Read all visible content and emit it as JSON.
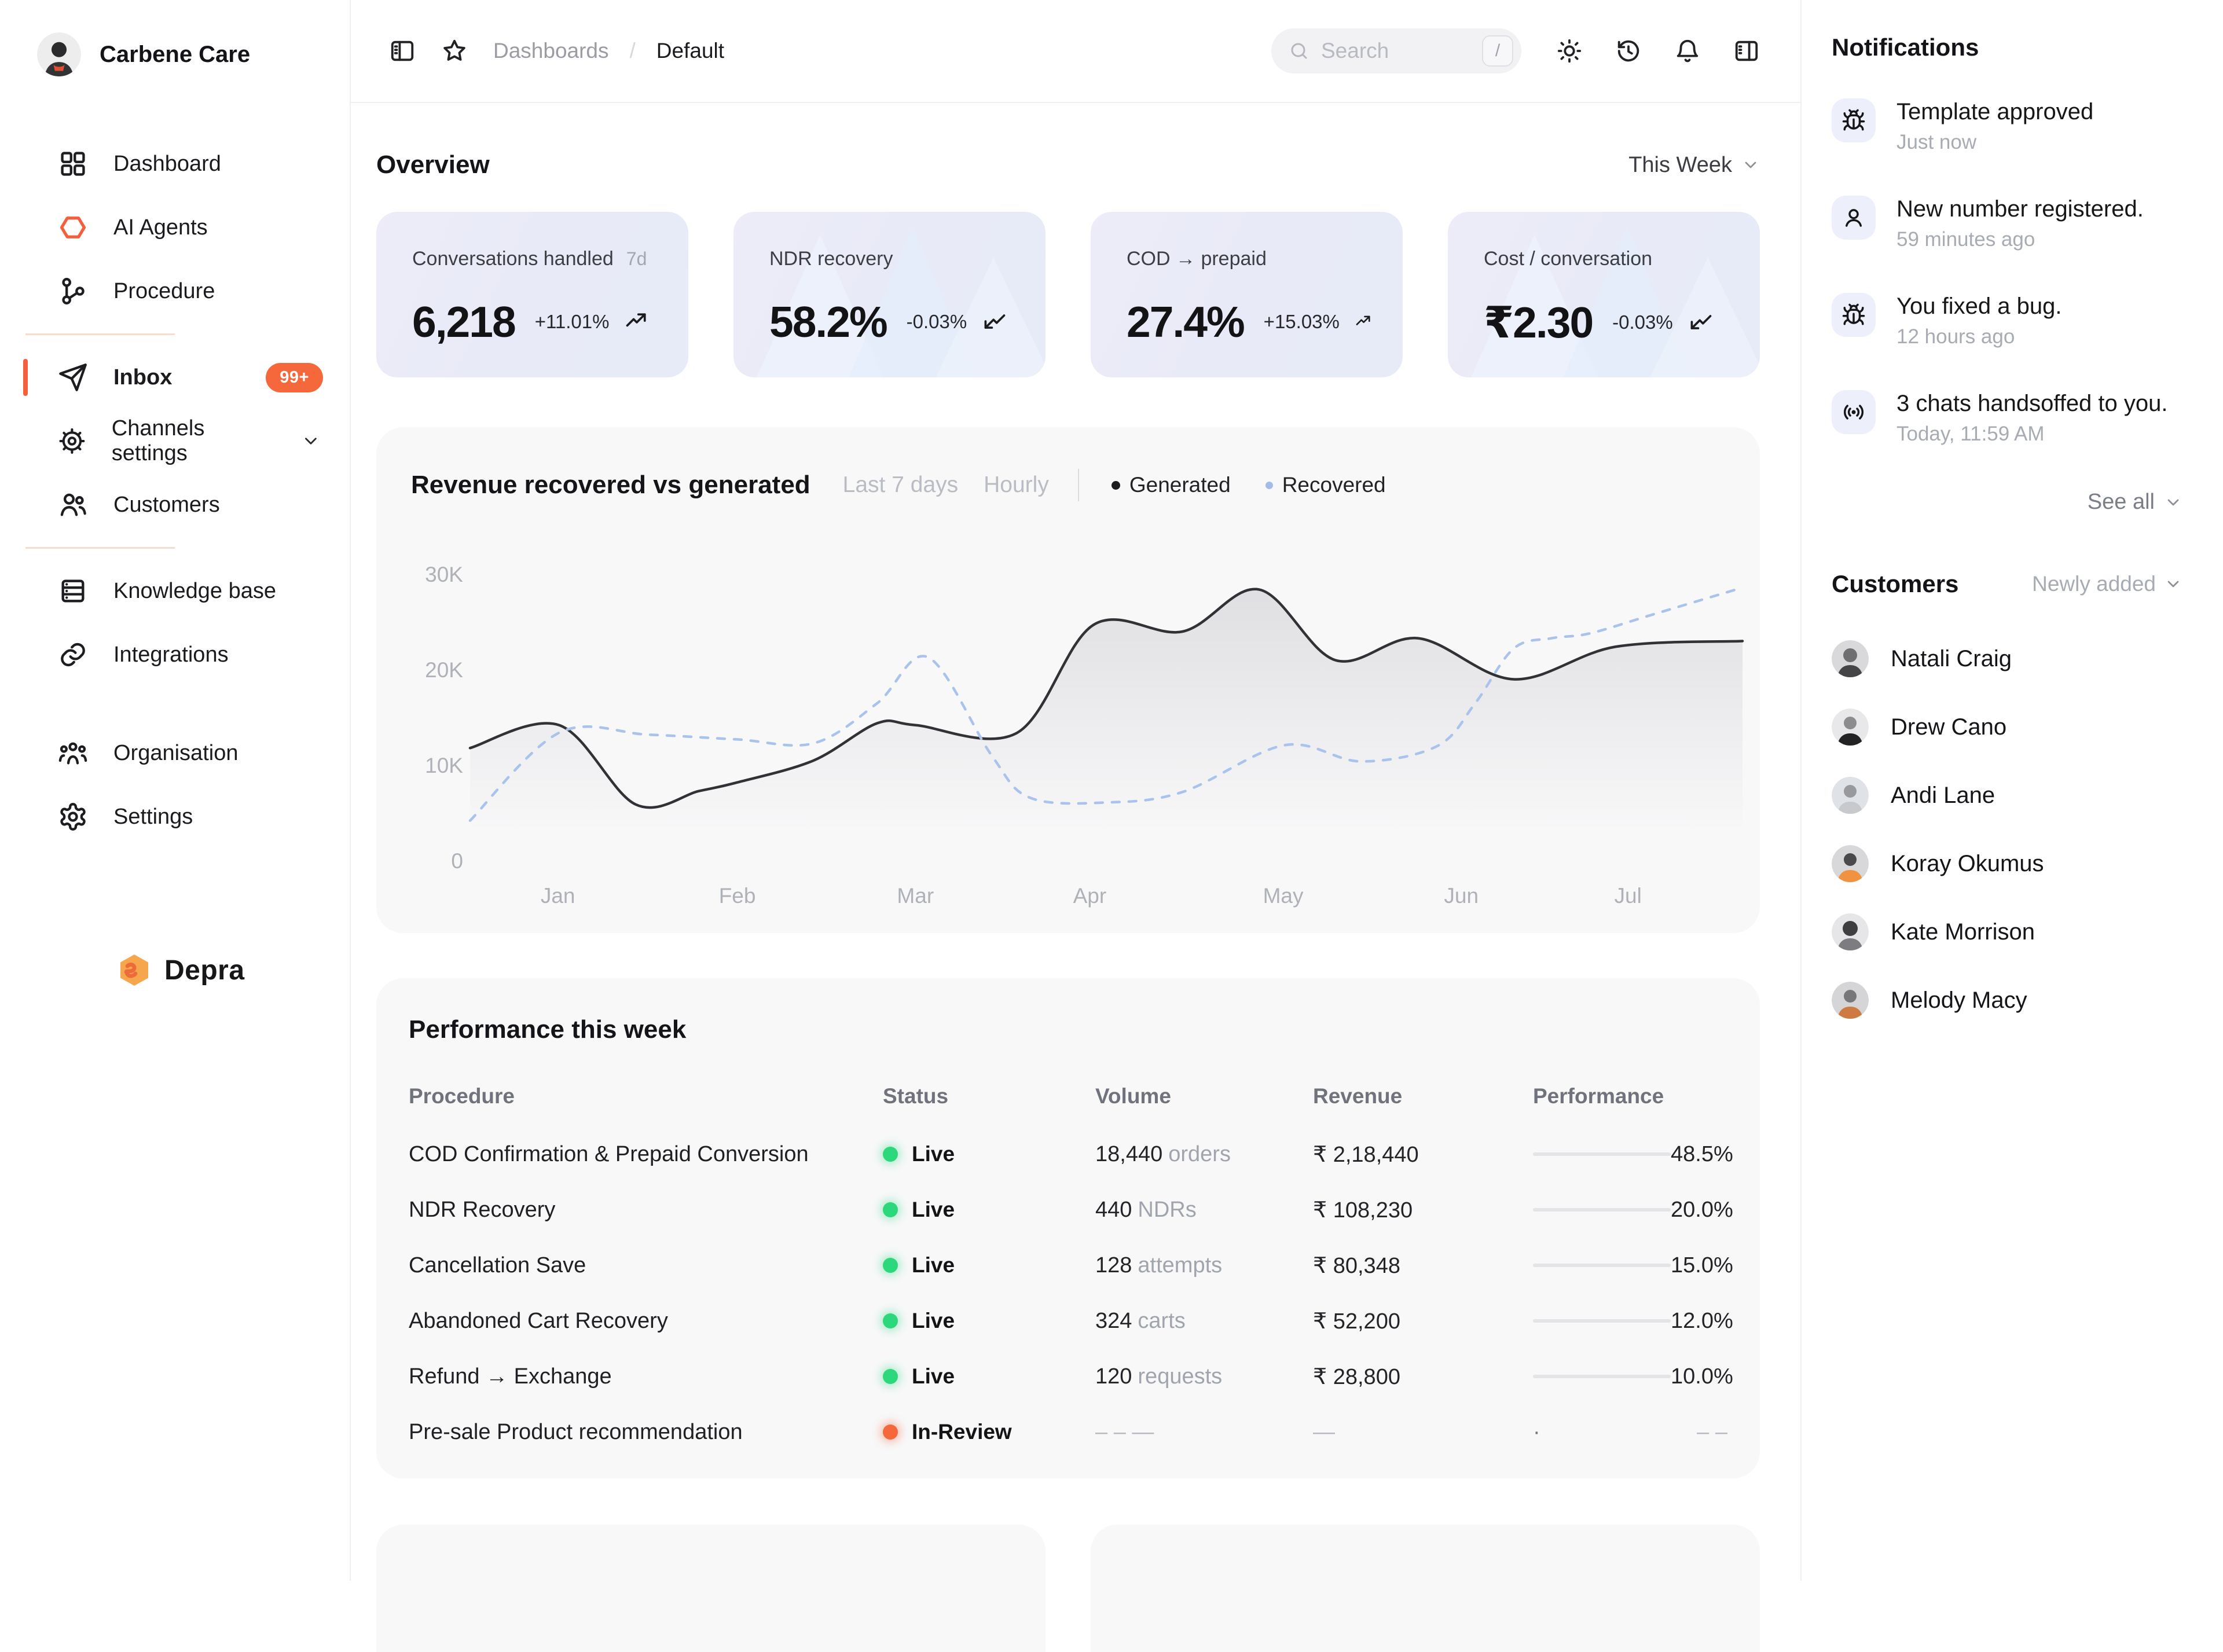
{
  "app": {
    "workspace": "Carbene Care",
    "logo_text": "Depra"
  },
  "theme": {
    "accent_orange": "#f4603c",
    "badge_orange": "#f4683c",
    "live_green": "#2bd87b",
    "card_lavender": "#e9eaf6",
    "panel_gray": "#f8f8f9",
    "recovered_blue": "#a9c3ec",
    "generated_dark": "#313136"
  },
  "sidebar": {
    "items": [
      {
        "label": "Dashboard",
        "icon": "dashboard-grid-icon"
      },
      {
        "label": "AI Agents",
        "icon": "hexagon-icon"
      },
      {
        "label": "Procedure",
        "icon": "workflow-icon"
      },
      {
        "label": "Inbox",
        "icon": "send-icon",
        "badge": "99+"
      },
      {
        "label": "Channels settings",
        "icon": "cog-icon"
      },
      {
        "label": "Customers",
        "icon": "users-icon"
      },
      {
        "label": "Knowledge base",
        "icon": "knowledge-base-icon"
      },
      {
        "label": "Integrations",
        "icon": "link-icon"
      },
      {
        "label": "Organisation",
        "icon": "organisation-icon"
      },
      {
        "label": "Settings",
        "icon": "gear-icon"
      }
    ]
  },
  "topbar": {
    "breadcrumb": {
      "parent": "Dashboards",
      "separator": "/",
      "current": "Default"
    },
    "search": {
      "placeholder": "Search",
      "shortcut": "/"
    }
  },
  "overview": {
    "title": "Overview",
    "period": "This Week",
    "cards": [
      {
        "label": "Conversations handled",
        "suffix": "7d",
        "value": "6,218",
        "delta": "+11.01%",
        "trend": "up",
        "watermark": false
      },
      {
        "label": "NDR recovery",
        "value": "58.2%",
        "delta": "-0.03%",
        "trend": "down",
        "watermark": true
      },
      {
        "label": "COD → prepaid",
        "value": "27.4%",
        "delta": "+15.03%",
        "trend": "up",
        "watermark": false
      },
      {
        "label": "Cost / conversation",
        "value": "₹2.30",
        "delta": "-0.03%",
        "trend": "down",
        "watermark": true
      }
    ]
  },
  "chart_data": {
    "type": "line",
    "title": "Revenue recovered vs generated",
    "range_label": "Last 7 days",
    "granularity_label": "Hourly",
    "x_tick_labels": [
      "Jan",
      "Feb",
      "Mar",
      "Apr",
      "May",
      "Jun",
      "Jul"
    ],
    "x_tick_pos": [
      6.9,
      21,
      35,
      48.7,
      63.9,
      77.9,
      91
    ],
    "y_ticks": [
      0,
      10000,
      20000,
      30000
    ],
    "y_tick_labels": [
      "0",
      "10K",
      "20K",
      "30K"
    ],
    "ylim": [
      0,
      30000
    ],
    "grid": false,
    "legend_position": "top",
    "legend": [
      {
        "name": "Generated",
        "color": "#313136",
        "style": "solid"
      },
      {
        "name": "Recovered",
        "color": "#a9c3ec",
        "style": "dashed"
      }
    ],
    "series": [
      {
        "name": "Generated",
        "color": "#313136",
        "style": "solid",
        "area_fill": true,
        "points": [
          [
            0,
            11800
          ],
          [
            7,
            14200
          ],
          [
            13,
            5900
          ],
          [
            18,
            7300
          ],
          [
            21,
            8200
          ],
          [
            27,
            10500
          ],
          [
            32,
            14400
          ],
          [
            35,
            14200
          ],
          [
            43,
            13400
          ],
          [
            49,
            24700
          ],
          [
            56,
            24000
          ],
          [
            62,
            28400
          ],
          [
            68,
            21000
          ],
          [
            74.5,
            23300
          ],
          [
            82,
            19000
          ],
          [
            90,
            22400
          ],
          [
            100,
            23000
          ]
        ]
      },
      {
        "name": "Recovered",
        "color": "#a9c3ec",
        "style": "dashed",
        "area_fill": false,
        "points": [
          [
            0,
            4200
          ],
          [
            7,
            13400
          ],
          [
            14,
            13200
          ],
          [
            21,
            12700
          ],
          [
            27,
            12300
          ],
          [
            32,
            16500
          ],
          [
            36,
            21300
          ],
          [
            41,
            11000
          ],
          [
            44,
            6600
          ],
          [
            50,
            6100
          ],
          [
            56,
            7200
          ],
          [
            64,
            12100
          ],
          [
            70,
            10400
          ],
          [
            76,
            12000
          ],
          [
            79,
            16500
          ],
          [
            82,
            22200
          ],
          [
            85,
            23300
          ],
          [
            88,
            23800
          ],
          [
            93,
            25800
          ],
          [
            100,
            28600
          ]
        ]
      }
    ]
  },
  "performance": {
    "title": "Performance this week",
    "columns": [
      "Procedure",
      "Status",
      "Volume",
      "Revenue",
      "Performance"
    ],
    "rows": [
      {
        "procedure": "COD Confirmation & Prepaid Conversion",
        "status": "Live",
        "status_color": "green",
        "volume": "18,440",
        "volume_unit": "orders",
        "revenue": "₹ 2,18,440",
        "pct": 48.5,
        "pct_label": "48.5%"
      },
      {
        "procedure": "NDR Recovery",
        "status": "Live",
        "status_color": "green",
        "volume": "440",
        "volume_unit": "NDRs",
        "revenue": "₹ 108,230",
        "pct": 20,
        "pct_label": "20.0%"
      },
      {
        "procedure": "Cancellation Save",
        "status": "Live",
        "status_color": "green",
        "volume": "128",
        "volume_unit": "attempts",
        "revenue": "₹ 80,348",
        "pct": 15,
        "pct_label": "15.0%"
      },
      {
        "procedure": "Abandoned Cart Recovery",
        "status": "Live",
        "status_color": "green",
        "volume": "324",
        "volume_unit": "carts",
        "revenue": "₹ 52,200",
        "pct": 12,
        "pct_label": "12.0%"
      },
      {
        "procedure": "Refund → Exchange",
        "status": "Live",
        "status_color": "green",
        "volume": "120",
        "volume_unit": "requests",
        "revenue": "₹ 28,800",
        "pct": 10,
        "pct_label": "10.0%"
      },
      {
        "procedure": "Pre-sale Product recommendation",
        "status": "In-Review",
        "status_color": "orange",
        "volume": "– – —",
        "volume_unit": "",
        "revenue": "—",
        "pct": null,
        "pct_label": "– –",
        "bar_placeholder": "·"
      }
    ]
  },
  "notifications": {
    "title": "Notifications",
    "see_all": "See all",
    "items": [
      {
        "icon": "bug-icon",
        "title": "Template approved",
        "time": "Just now"
      },
      {
        "icon": "user-icon",
        "title": "New number registered.",
        "time": "59 minutes ago"
      },
      {
        "icon": "bug-icon",
        "title": "You fixed a bug.",
        "time": "12 hours ago"
      },
      {
        "icon": "broadcast-icon",
        "title": "3 chats handsoffed to you.",
        "time": "Today, 11:59 AM"
      }
    ]
  },
  "customers": {
    "title": "Customers",
    "filter": "Newly added",
    "items": [
      {
        "name": "Natali Craig"
      },
      {
        "name": "Drew Cano"
      },
      {
        "name": "Andi Lane"
      },
      {
        "name": "Koray Okumus"
      },
      {
        "name": "Kate Morrison"
      },
      {
        "name": "Melody Macy"
      }
    ]
  }
}
